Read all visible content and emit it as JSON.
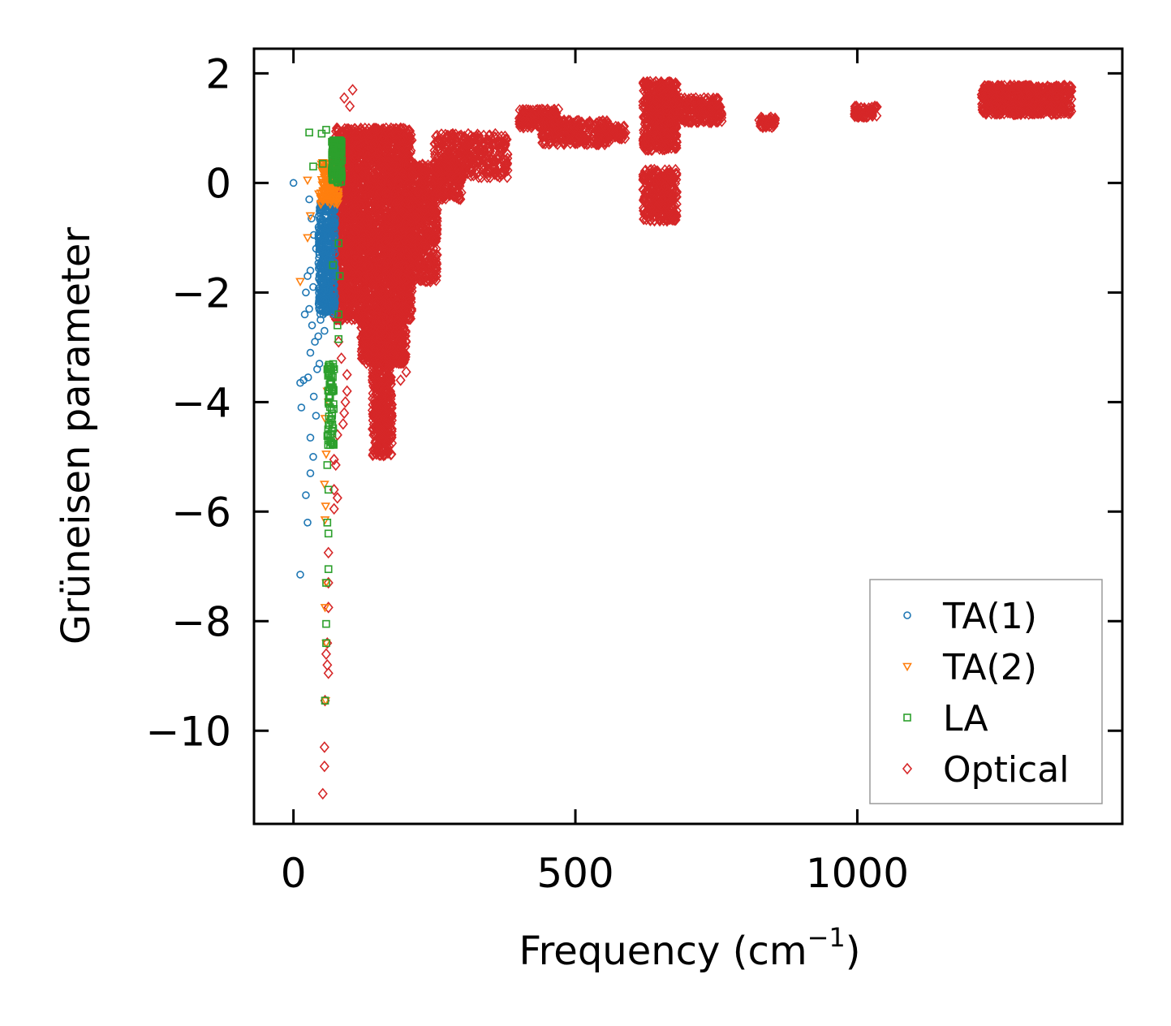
{
  "chart_data": {
    "type": "scatter",
    "xlabel": "Frequency (cm",
    "xlabel_sup": "−1",
    "xlabel_end": ")",
    "ylabel": "Grüneisen parameter",
    "xlim": [
      -70,
      1470
    ],
    "ylim": [
      -11.7,
      2.45
    ],
    "xticks": [
      0,
      500,
      1000
    ],
    "xtick_labels": [
      "0",
      "500",
      "1000"
    ],
    "yticks": [
      2,
      0,
      -2,
      -4,
      -6,
      -8,
      -10
    ],
    "ytick_labels": [
      "2",
      "0",
      "−2",
      "−4",
      "−6",
      "−8",
      "−10"
    ],
    "legend_position": "lower-right",
    "series": [
      {
        "name": "TA(1)",
        "marker": "circle",
        "color": "#1f77b4",
        "points": [
          [
            0,
            0.0
          ],
          [
            28,
            -0.3
          ],
          [
            32,
            -0.65
          ],
          [
            36,
            -0.95
          ],
          [
            40,
            -1.2
          ],
          [
            25,
            -1.7
          ],
          [
            30,
            -1.6
          ],
          [
            22,
            -2.0
          ],
          [
            35,
            -1.9
          ],
          [
            28,
            -2.3
          ],
          [
            20,
            -2.4
          ],
          [
            33,
            -2.6
          ],
          [
            38,
            -2.9
          ],
          [
            30,
            -3.1
          ],
          [
            44,
            -2.8
          ],
          [
            42,
            -3.4
          ],
          [
            18,
            -3.6
          ],
          [
            12,
            -3.65
          ],
          [
            26,
            -3.55
          ],
          [
            36,
            -3.9
          ],
          [
            14,
            -4.1
          ],
          [
            40,
            -4.25
          ],
          [
            30,
            -4.65
          ],
          [
            35,
            -5.0
          ],
          [
            30,
            -5.3
          ],
          [
            22,
            -5.7
          ],
          [
            25,
            -6.2
          ],
          [
            12,
            -7.15
          ],
          [
            48,
            -2.5
          ],
          [
            50,
            -2.2
          ],
          [
            46,
            -3.3
          ],
          [
            55,
            -2.7
          ],
          [
            45,
            -0.6
          ],
          [
            50,
            -0.9
          ],
          [
            58,
            -0.5
          ],
          [
            62,
            -0.4
          ],
          [
            60,
            -1.5
          ],
          [
            52,
            -1.8
          ]
        ],
        "dense_regions": [
          {
            "x": [
              44,
              74
            ],
            "y": [
              -2.4,
              -0.3
            ],
            "count": 420
          }
        ]
      },
      {
        "name": "TA(2)",
        "marker": "triangle-down",
        "color": "#ff7f0e",
        "points": [
          [
            25,
            0.05
          ],
          [
            45,
            -0.2
          ],
          [
            30,
            -0.6
          ],
          [
            25,
            -1.0
          ],
          [
            12,
            -1.8
          ],
          [
            56,
            -4.3
          ],
          [
            58,
            -4.95
          ],
          [
            55,
            -5.5
          ],
          [
            57,
            -5.9
          ],
          [
            56,
            -6.15
          ],
          [
            58,
            -7.3
          ],
          [
            56,
            -7.75
          ],
          [
            58,
            -8.4
          ],
          [
            57,
            -9.45
          ],
          [
            60,
            -3.8
          ],
          [
            62,
            -4.0
          ],
          [
            72,
            0.35
          ],
          [
            68,
            0.1
          ]
        ],
        "dense_regions": [
          {
            "x": [
              48,
              80
            ],
            "y": [
              -0.4,
              0.4
            ],
            "count": 140
          }
        ]
      },
      {
        "name": "LA",
        "marker": "square",
        "color": "#2ca02c",
        "points": [
          [
            28,
            0.92
          ],
          [
            50,
            0.9
          ],
          [
            58,
            0.97
          ],
          [
            35,
            0.3
          ],
          [
            52,
            0.35
          ],
          [
            85,
            0.6
          ],
          [
            80,
            -1.1
          ],
          [
            82,
            -1.7
          ],
          [
            80,
            -2.4
          ],
          [
            80,
            -2.85
          ],
          [
            72,
            -3.4
          ],
          [
            65,
            -3.9
          ],
          [
            62,
            -4.6
          ],
          [
            60,
            -5.15
          ],
          [
            62,
            -5.6
          ],
          [
            60,
            -6.2
          ],
          [
            62,
            -6.4
          ],
          [
            62,
            -7.05
          ],
          [
            58,
            -7.3
          ],
          [
            58,
            -8.05
          ],
          [
            58,
            -8.4
          ],
          [
            56,
            -9.45
          ],
          [
            78,
            -2.6
          ],
          [
            70,
            -1.5
          ]
        ],
        "dense_regions": [
          {
            "x": [
              68,
              86
            ],
            "y": [
              0.0,
              0.8
            ],
            "count": 120
          },
          {
            "x": [
              60,
              72
            ],
            "y": [
              -4.8,
              -3.3
            ],
            "count": 60
          }
        ]
      },
      {
        "name": "Optical",
        "marker": "diamond",
        "color": "#d62728",
        "points": [
          [
            105,
            1.7
          ],
          [
            90,
            1.55
          ],
          [
            100,
            1.4
          ],
          [
            190,
            1.0
          ],
          [
            180,
            0.9
          ],
          [
            160,
            0.85
          ],
          [
            200,
            -3.45
          ],
          [
            190,
            -3.6
          ],
          [
            95,
            -3.8
          ],
          [
            92,
            -4.0
          ],
          [
            90,
            -4.2
          ],
          [
            88,
            -4.4
          ],
          [
            78,
            -4.6
          ],
          [
            72,
            -5.05
          ],
          [
            75,
            -5.15
          ],
          [
            72,
            -5.6
          ],
          [
            78,
            -5.75
          ],
          [
            72,
            -5.95
          ],
          [
            62,
            -6.75
          ],
          [
            62,
            -7.3
          ],
          [
            62,
            -7.75
          ],
          [
            60,
            -8.4
          ],
          [
            58,
            -8.6
          ],
          [
            60,
            -8.8
          ],
          [
            62,
            -8.95
          ],
          [
            56,
            -9.45
          ],
          [
            55,
            -10.3
          ],
          [
            55,
            -10.65
          ],
          [
            52,
            -11.15
          ],
          [
            80,
            -2.9
          ],
          [
            85,
            -3.2
          ],
          [
            95,
            -3.5
          ]
        ],
        "dense_regions": [
          {
            "x": [
              72,
              210
            ],
            "y": [
              -2.5,
              1.0
            ],
            "count": 3000
          },
          {
            "x": [
              120,
              200
            ],
            "y": [
              -3.3,
              -2.5
            ],
            "count": 500
          },
          {
            "x": [
              140,
              175
            ],
            "y": [
              -5.0,
              -3.3
            ],
            "count": 350
          },
          {
            "x": [
              180,
              255
            ],
            "y": [
              -1.8,
              -0.2
            ],
            "count": 700
          },
          {
            "x": [
              210,
              300
            ],
            "y": [
              -0.3,
              0.35
            ],
            "count": 300
          },
          {
            "x": [
              250,
              380
            ],
            "y": [
              0.1,
              0.9
            ],
            "count": 380
          },
          {
            "x": [
              400,
              470
            ],
            "y": [
              1.0,
              1.35
            ],
            "count": 170
          },
          {
            "x": [
              440,
              560
            ],
            "y": [
              0.7,
              1.15
            ],
            "count": 260
          },
          {
            "x": [
              540,
              590
            ],
            "y": [
              0.8,
              1.05
            ],
            "count": 80
          },
          {
            "x": [
              620,
              680
            ],
            "y": [
              0.6,
              1.85
            ],
            "count": 480
          },
          {
            "x": [
              620,
              680
            ],
            "y": [
              -0.7,
              0.25
            ],
            "count": 300
          },
          {
            "x": [
              660,
              760
            ],
            "y": [
              1.1,
              1.55
            ],
            "count": 260
          },
          {
            "x": [
              825,
              855
            ],
            "y": [
              1.0,
              1.2
            ],
            "count": 40
          },
          {
            "x": [
              995,
              1035
            ],
            "y": [
              1.2,
              1.4
            ],
            "count": 60
          },
          {
            "x": [
              1220,
              1380
            ],
            "y": [
              1.25,
              1.78
            ],
            "count": 700
          }
        ]
      }
    ]
  }
}
